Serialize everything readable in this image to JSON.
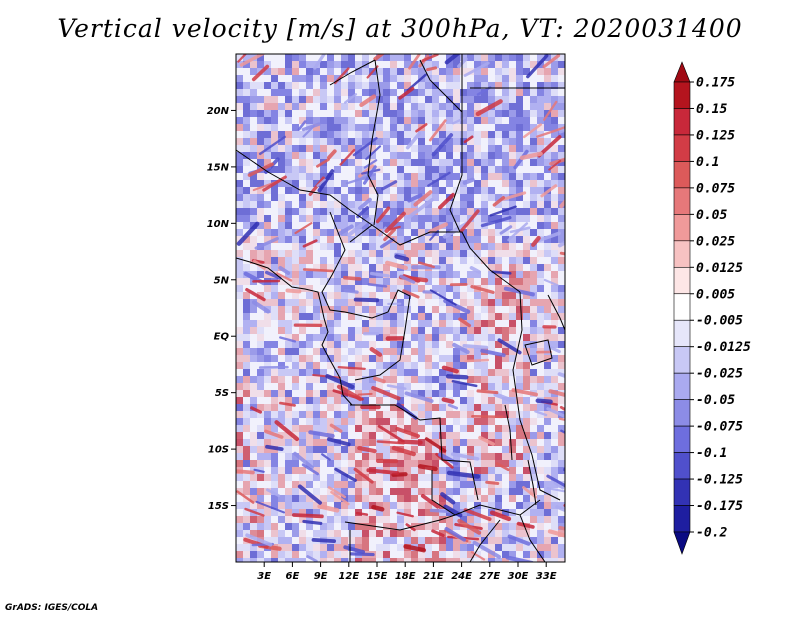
{
  "title": "Vertical velocity [m/s] at 300hPa, VT: 2020031400",
  "credit": "GrADS: IGES/COLA",
  "map": {
    "lon_range": [
      0,
      35
    ],
    "lat_range": [
      -20,
      25
    ],
    "x_tick_labels": [
      "3E",
      "6E",
      "9E",
      "12E",
      "15E",
      "18E",
      "21E",
      "24E",
      "27E",
      "30E",
      "33E"
    ],
    "x_tick_values": [
      3,
      6,
      9,
      12,
      15,
      18,
      21,
      24,
      27,
      30,
      33
    ],
    "y_tick_labels": [
      "20N",
      "15N",
      "10N",
      "5N",
      "EQ",
      "5S",
      "10S",
      "15S"
    ],
    "y_tick_values": [
      20,
      15,
      10,
      5,
      0,
      -5,
      -10,
      -15
    ],
    "colorbar": {
      "labels": [
        "0.175",
        "0.15",
        "0.125",
        "0.1",
        "0.075",
        "0.05",
        "0.025",
        "0.0125",
        "0.005",
        "-0.005",
        "-0.0125",
        "-0.025",
        "-0.05",
        "-0.075",
        "-0.1",
        "-0.125",
        "-0.175",
        "-0.2"
      ],
      "colors": [
        "#a00a14",
        "#b4141e",
        "#c8283a",
        "#d23c46",
        "#dc5a5a",
        "#e6787a",
        "#f09a9a",
        "#f7c2c2",
        "#fde6e6",
        "#ffffff",
        "#e6e6fa",
        "#c8c8f5",
        "#aaaaf0",
        "#8c8ce6",
        "#6e6ede",
        "#5050cc",
        "#3232b4",
        "#1e1ea0",
        "#0a0a82"
      ]
    }
  }
}
